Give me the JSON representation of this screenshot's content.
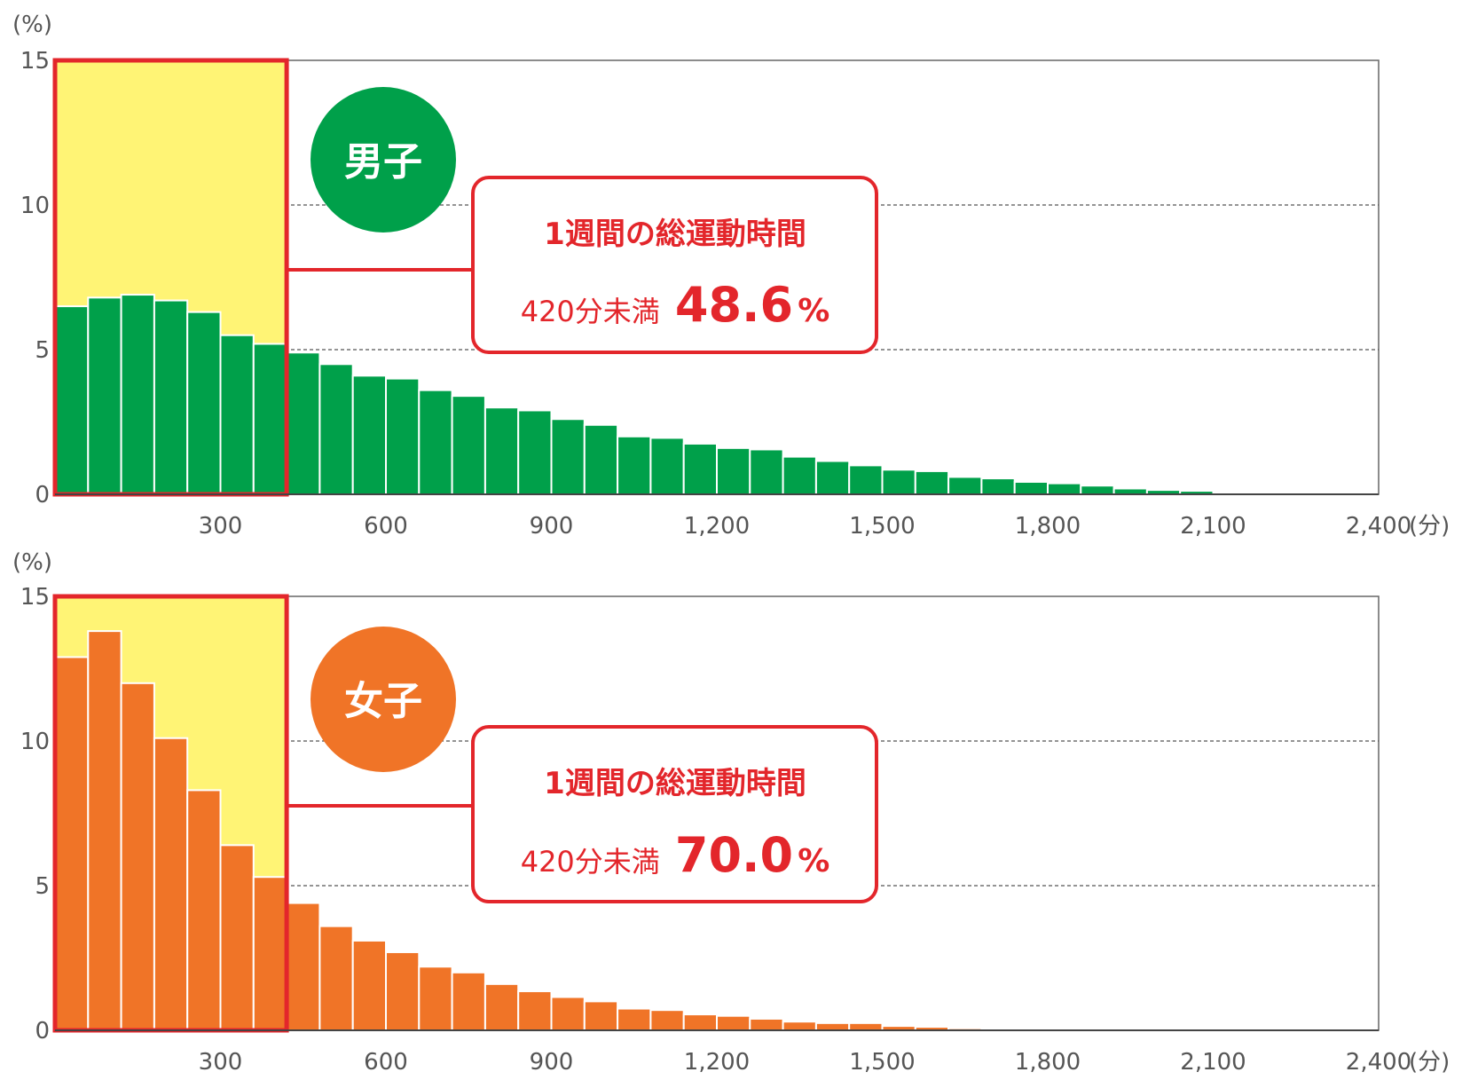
{
  "colors": {
    "boys_bar": "#00a04a",
    "girls_bar": "#f07427",
    "highlight_fill": "#fff475",
    "highlight_border": "#e3262b",
    "callout_text": "#e3262b"
  },
  "chart_data": [
    {
      "type": "bar",
      "badge": "男子",
      "y_unit": "(%)",
      "x_unit": "(分)",
      "ylim": [
        0,
        15
      ],
      "xlim": [
        0,
        2400
      ],
      "y_ticks": [
        "0",
        "5",
        "10",
        "15"
      ],
      "x_ticks": [
        {
          "value": 300,
          "label": "300"
        },
        {
          "value": 600,
          "label": "600"
        },
        {
          "value": 900,
          "label": "900"
        },
        {
          "value": 1200,
          "label": "1,200"
        },
        {
          "value": 1500,
          "label": "1,500"
        },
        {
          "value": 1800,
          "label": "1,800"
        },
        {
          "value": 2100,
          "label": "2,100"
        },
        {
          "value": 2400,
          "label": "2,400"
        }
      ],
      "grid_y": [
        5,
        10
      ],
      "bin_width": 60,
      "highlight_range": [
        0,
        420
      ],
      "values": [
        6.5,
        6.8,
        6.9,
        6.7,
        6.3,
        5.5,
        5.2,
        4.9,
        4.5,
        4.1,
        4.0,
        3.6,
        3.4,
        3.0,
        2.9,
        2.6,
        2.4,
        2.0,
        1.95,
        1.75,
        1.6,
        1.55,
        1.3,
        1.15,
        1.0,
        0.85,
        0.8,
        0.6,
        0.55,
        0.43,
        0.38,
        0.3,
        0.2,
        0.15,
        0.12,
        0.06,
        0.05,
        0.02
      ],
      "callout": {
        "line1": "1週間の総運動時間",
        "prefix": "420分未満",
        "value": "48.6",
        "unit": "%"
      }
    },
    {
      "type": "bar",
      "badge": "女子",
      "y_unit": "(%)",
      "x_unit": "(分)",
      "ylim": [
        0,
        15
      ],
      "xlim": [
        0,
        2400
      ],
      "y_ticks": [
        "0",
        "5",
        "10",
        "15"
      ],
      "x_ticks": [
        {
          "value": 300,
          "label": "300"
        },
        {
          "value": 600,
          "label": "600"
        },
        {
          "value": 900,
          "label": "900"
        },
        {
          "value": 1200,
          "label": "1,200"
        },
        {
          "value": 1500,
          "label": "1,500"
        },
        {
          "value": 1800,
          "label": "1,800"
        },
        {
          "value": 2100,
          "label": "2,100"
        },
        {
          "value": 2400,
          "label": "2,400"
        }
      ],
      "grid_y": [
        5,
        10
      ],
      "bin_width": 60,
      "highlight_range": [
        0,
        420
      ],
      "values": [
        12.9,
        13.8,
        12.0,
        10.1,
        8.3,
        6.4,
        5.3,
        4.4,
        3.6,
        3.1,
        2.7,
        2.2,
        2.0,
        1.6,
        1.35,
        1.15,
        1.0,
        0.75,
        0.7,
        0.55,
        0.5,
        0.4,
        0.3,
        0.25,
        0.25,
        0.15,
        0.12,
        0.07,
        0.05,
        0.04,
        0.03,
        0.02,
        0.01,
        0.01,
        0.01
      ],
      "callout": {
        "line1": "1週間の総運動時間",
        "prefix": "420分未満",
        "value": "70.0",
        "unit": "%"
      }
    }
  ]
}
